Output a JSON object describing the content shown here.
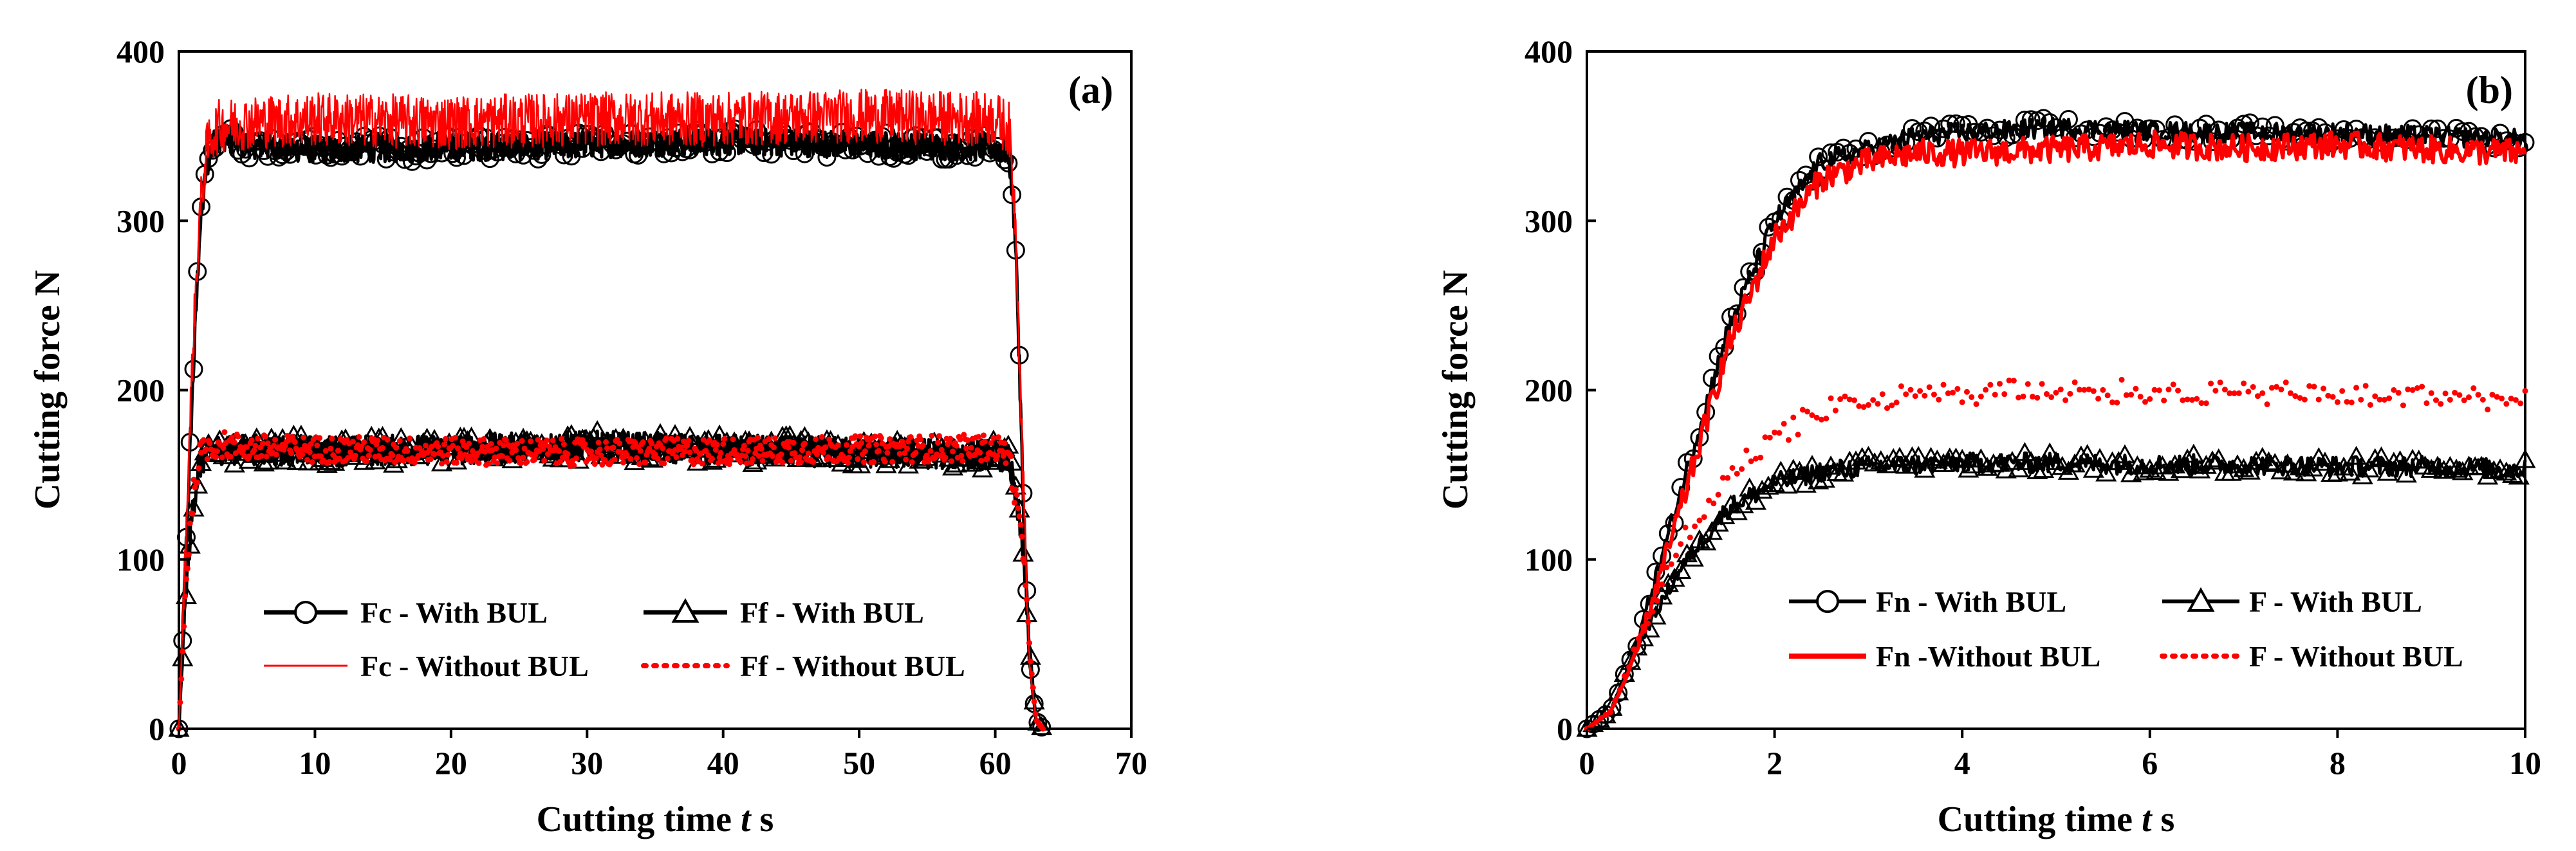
{
  "chart_data": [
    {
      "type": "line",
      "panel_label": "(a)",
      "xlabel": {
        "text": "Cutting time",
        "var": "t",
        "unit": "s"
      },
      "ylabel": "Cutting force N",
      "xlim": [
        0,
        70
      ],
      "ylim": [
        0,
        400
      ],
      "xticks": [
        0,
        10,
        20,
        30,
        40,
        50,
        60,
        70
      ],
      "yticks": [
        0,
        100,
        200,
        300,
        400
      ],
      "grid": false,
      "legend_position": "lower-center",
      "series": [
        {
          "name": "Fc - With BUL",
          "color": "#000000",
          "style": "solid-circle-markers",
          "x": [
            0,
            0.5,
            1,
            1.5,
            2,
            2.5,
            3,
            5,
            10,
            20,
            30,
            40,
            50,
            60,
            61,
            61.5,
            62,
            62.5,
            63,
            63.5
          ],
          "y": [
            0,
            100,
            200,
            290,
            330,
            345,
            350,
            345,
            342,
            343,
            345,
            347,
            345,
            343,
            340,
            290,
            150,
            40,
            5,
            0
          ],
          "noise": 8,
          "steady_range": [
            3,
            61
          ]
        },
        {
          "name": "Ff - With BUL",
          "color": "#000000",
          "style": "solid-triangle-markers",
          "x": [
            0,
            0.5,
            1,
            1.5,
            2,
            3,
            5,
            10,
            20,
            30,
            40,
            50,
            60,
            61,
            62,
            62.5,
            63,
            63.5
          ],
          "y": [
            0,
            80,
            130,
            155,
            162,
            165,
            165,
            164,
            165,
            167,
            165,
            163,
            162,
            160,
            110,
            50,
            5,
            0
          ],
          "noise": 9,
          "steady_range": [
            3,
            61
          ]
        },
        {
          "name": "Fc - Without BUL",
          "color": "#ff0000",
          "style": "thin-solid",
          "x": [
            0,
            0.5,
            1,
            1.5,
            2,
            2.5,
            3,
            5,
            10,
            20,
            30,
            40,
            50,
            60,
            61,
            61.5,
            62,
            62.5,
            63,
            63.5
          ],
          "y": [
            0,
            110,
            220,
            300,
            340,
            352,
            356,
            358,
            360,
            358,
            360,
            360,
            362,
            360,
            355,
            300,
            160,
            40,
            5,
            0
          ],
          "noise": 16,
          "steady_range": [
            3,
            61
          ]
        },
        {
          "name": "Ff - Without BUL",
          "color": "#ff0000",
          "style": "dotted",
          "x": [
            0,
            0.5,
            1,
            1.5,
            2,
            3,
            5,
            10,
            20,
            30,
            40,
            50,
            60,
            61,
            62,
            62.5,
            63,
            63.5
          ],
          "y": [
            0,
            85,
            135,
            160,
            166,
            168,
            166,
            165,
            164,
            163,
            164,
            165,
            166,
            162,
            110,
            50,
            5,
            0
          ],
          "noise": 8,
          "steady_range": [
            3,
            61
          ]
        }
      ]
    },
    {
      "type": "line",
      "panel_label": "(b)",
      "xlabel": {
        "text": "Cutting time",
        "var": "t",
        "unit": "s"
      },
      "ylabel": "Cutting force N",
      "xlim": [
        0,
        10
      ],
      "ylim": [
        0,
        400
      ],
      "xticks": [
        0,
        2,
        4,
        6,
        8,
        10
      ],
      "yticks": [
        0,
        100,
        200,
        300,
        400
      ],
      "grid": false,
      "legend_position": "lower-center",
      "series": [
        {
          "name": "Fn - With BUL",
          "color": "#000000",
          "style": "solid-circle-markers",
          "x": [
            0,
            0.25,
            0.5,
            1,
            1.5,
            2,
            2.5,
            3,
            3.5,
            4,
            5,
            6,
            7,
            8,
            9,
            10
          ],
          "y": [
            0,
            10,
            45,
            140,
            235,
            300,
            335,
            342,
            350,
            352,
            355,
            353,
            352,
            352,
            350,
            348
          ],
          "noise": 6
        },
        {
          "name": "F - With BUL",
          "color": "#000000",
          "style": "solid-triangle-markers",
          "x": [
            0,
            0.25,
            0.5,
            1,
            1.5,
            2,
            2.5,
            3,
            4,
            5,
            6,
            7,
            8,
            9,
            10
          ],
          "y": [
            0,
            10,
            45,
            95,
            130,
            145,
            152,
            155,
            157,
            157,
            156,
            156,
            155,
            155,
            153
          ],
          "noise": 6
        },
        {
          "name": "Fn -Without BUL",
          "color": "#ff0000",
          "style": "solid",
          "x": [
            0,
            0.25,
            0.5,
            1,
            1.5,
            2,
            2.5,
            3,
            3.5,
            4,
            5,
            6,
            7,
            8,
            9,
            10
          ],
          "y": [
            0,
            10,
            40,
            130,
            225,
            290,
            325,
            335,
            340,
            340,
            342,
            345,
            343,
            345,
            342,
            340
          ],
          "noise": 8
        },
        {
          "name": "F - Without BUL",
          "color": "#ff0000",
          "style": "dotted",
          "x": [
            0,
            0.25,
            0.5,
            1,
            1.5,
            2,
            2.5,
            3,
            3.5,
            4,
            5,
            6,
            7,
            8,
            9,
            10
          ],
          "y": [
            0,
            10,
            45,
            110,
            150,
            172,
            188,
            192,
            197,
            198,
            200,
            199,
            198,
            197,
            196,
            195
          ],
          "noise": 7
        }
      ]
    }
  ]
}
